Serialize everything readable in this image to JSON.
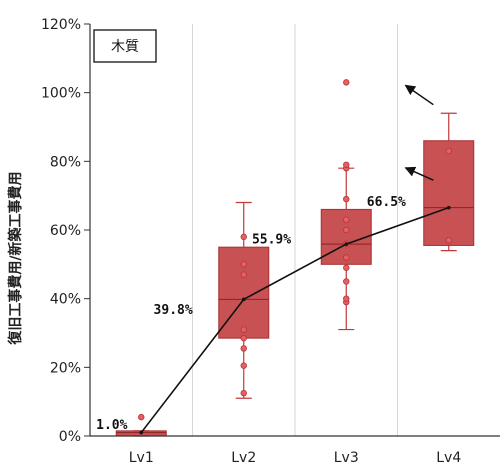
{
  "chart_data": {
    "type": "box",
    "title": "木質",
    "xlabel": "",
    "ylabel": "復旧工事費用/新築工事費用",
    "categories": [
      "Lv1",
      "Lv2",
      "Lv3",
      "Lv4"
    ],
    "y_ticks": [
      "0%",
      "20%",
      "40%",
      "60%",
      "80%",
      "100%",
      "120%"
    ],
    "ylim": [
      0,
      1.2
    ],
    "grid": "vertical",
    "box_color": "#c0393b",
    "boxes": [
      {
        "category": "Lv1",
        "whisker_low": 0.0,
        "q1": 0.0,
        "median": 0.01,
        "q3": 0.015,
        "whisker_high": 0.015,
        "points": [
          0.055
        ]
      },
      {
        "category": "Lv2",
        "whisker_low": 0.11,
        "q1": 0.285,
        "median": 0.398,
        "q3": 0.55,
        "whisker_high": 0.68,
        "points": [
          0.125,
          0.205,
          0.255,
          0.285,
          0.31,
          0.47,
          0.5,
          0.58
        ]
      },
      {
        "category": "Lv3",
        "whisker_low": 0.31,
        "q1": 0.5,
        "median": 0.559,
        "q3": 0.66,
        "whisker_high": 0.78,
        "points": [
          0.39,
          0.4,
          0.45,
          0.49,
          0.52,
          0.56,
          0.6,
          0.63,
          0.69,
          0.78,
          0.79,
          1.03
        ]
      },
      {
        "category": "Lv4",
        "whisker_low": 0.54,
        "q1": 0.555,
        "median": 0.665,
        "q3": 0.86,
        "whisker_high": 0.94,
        "points": [
          0.57,
          0.83
        ]
      }
    ],
    "mean_line": [
      0.01,
      0.398,
      0.559,
      0.665
    ],
    "mean_labels": [
      "1.0%",
      "39.8%",
      "55.9%",
      "66.5%"
    ],
    "annotations": [
      {
        "type": "arrow",
        "from": [
          3.35,
          0.965
        ],
        "to": [
          3.0,
          1.03
        ]
      },
      {
        "type": "arrow",
        "from": [
          3.35,
          0.745
        ],
        "to": [
          3.0,
          0.79
        ]
      }
    ]
  }
}
